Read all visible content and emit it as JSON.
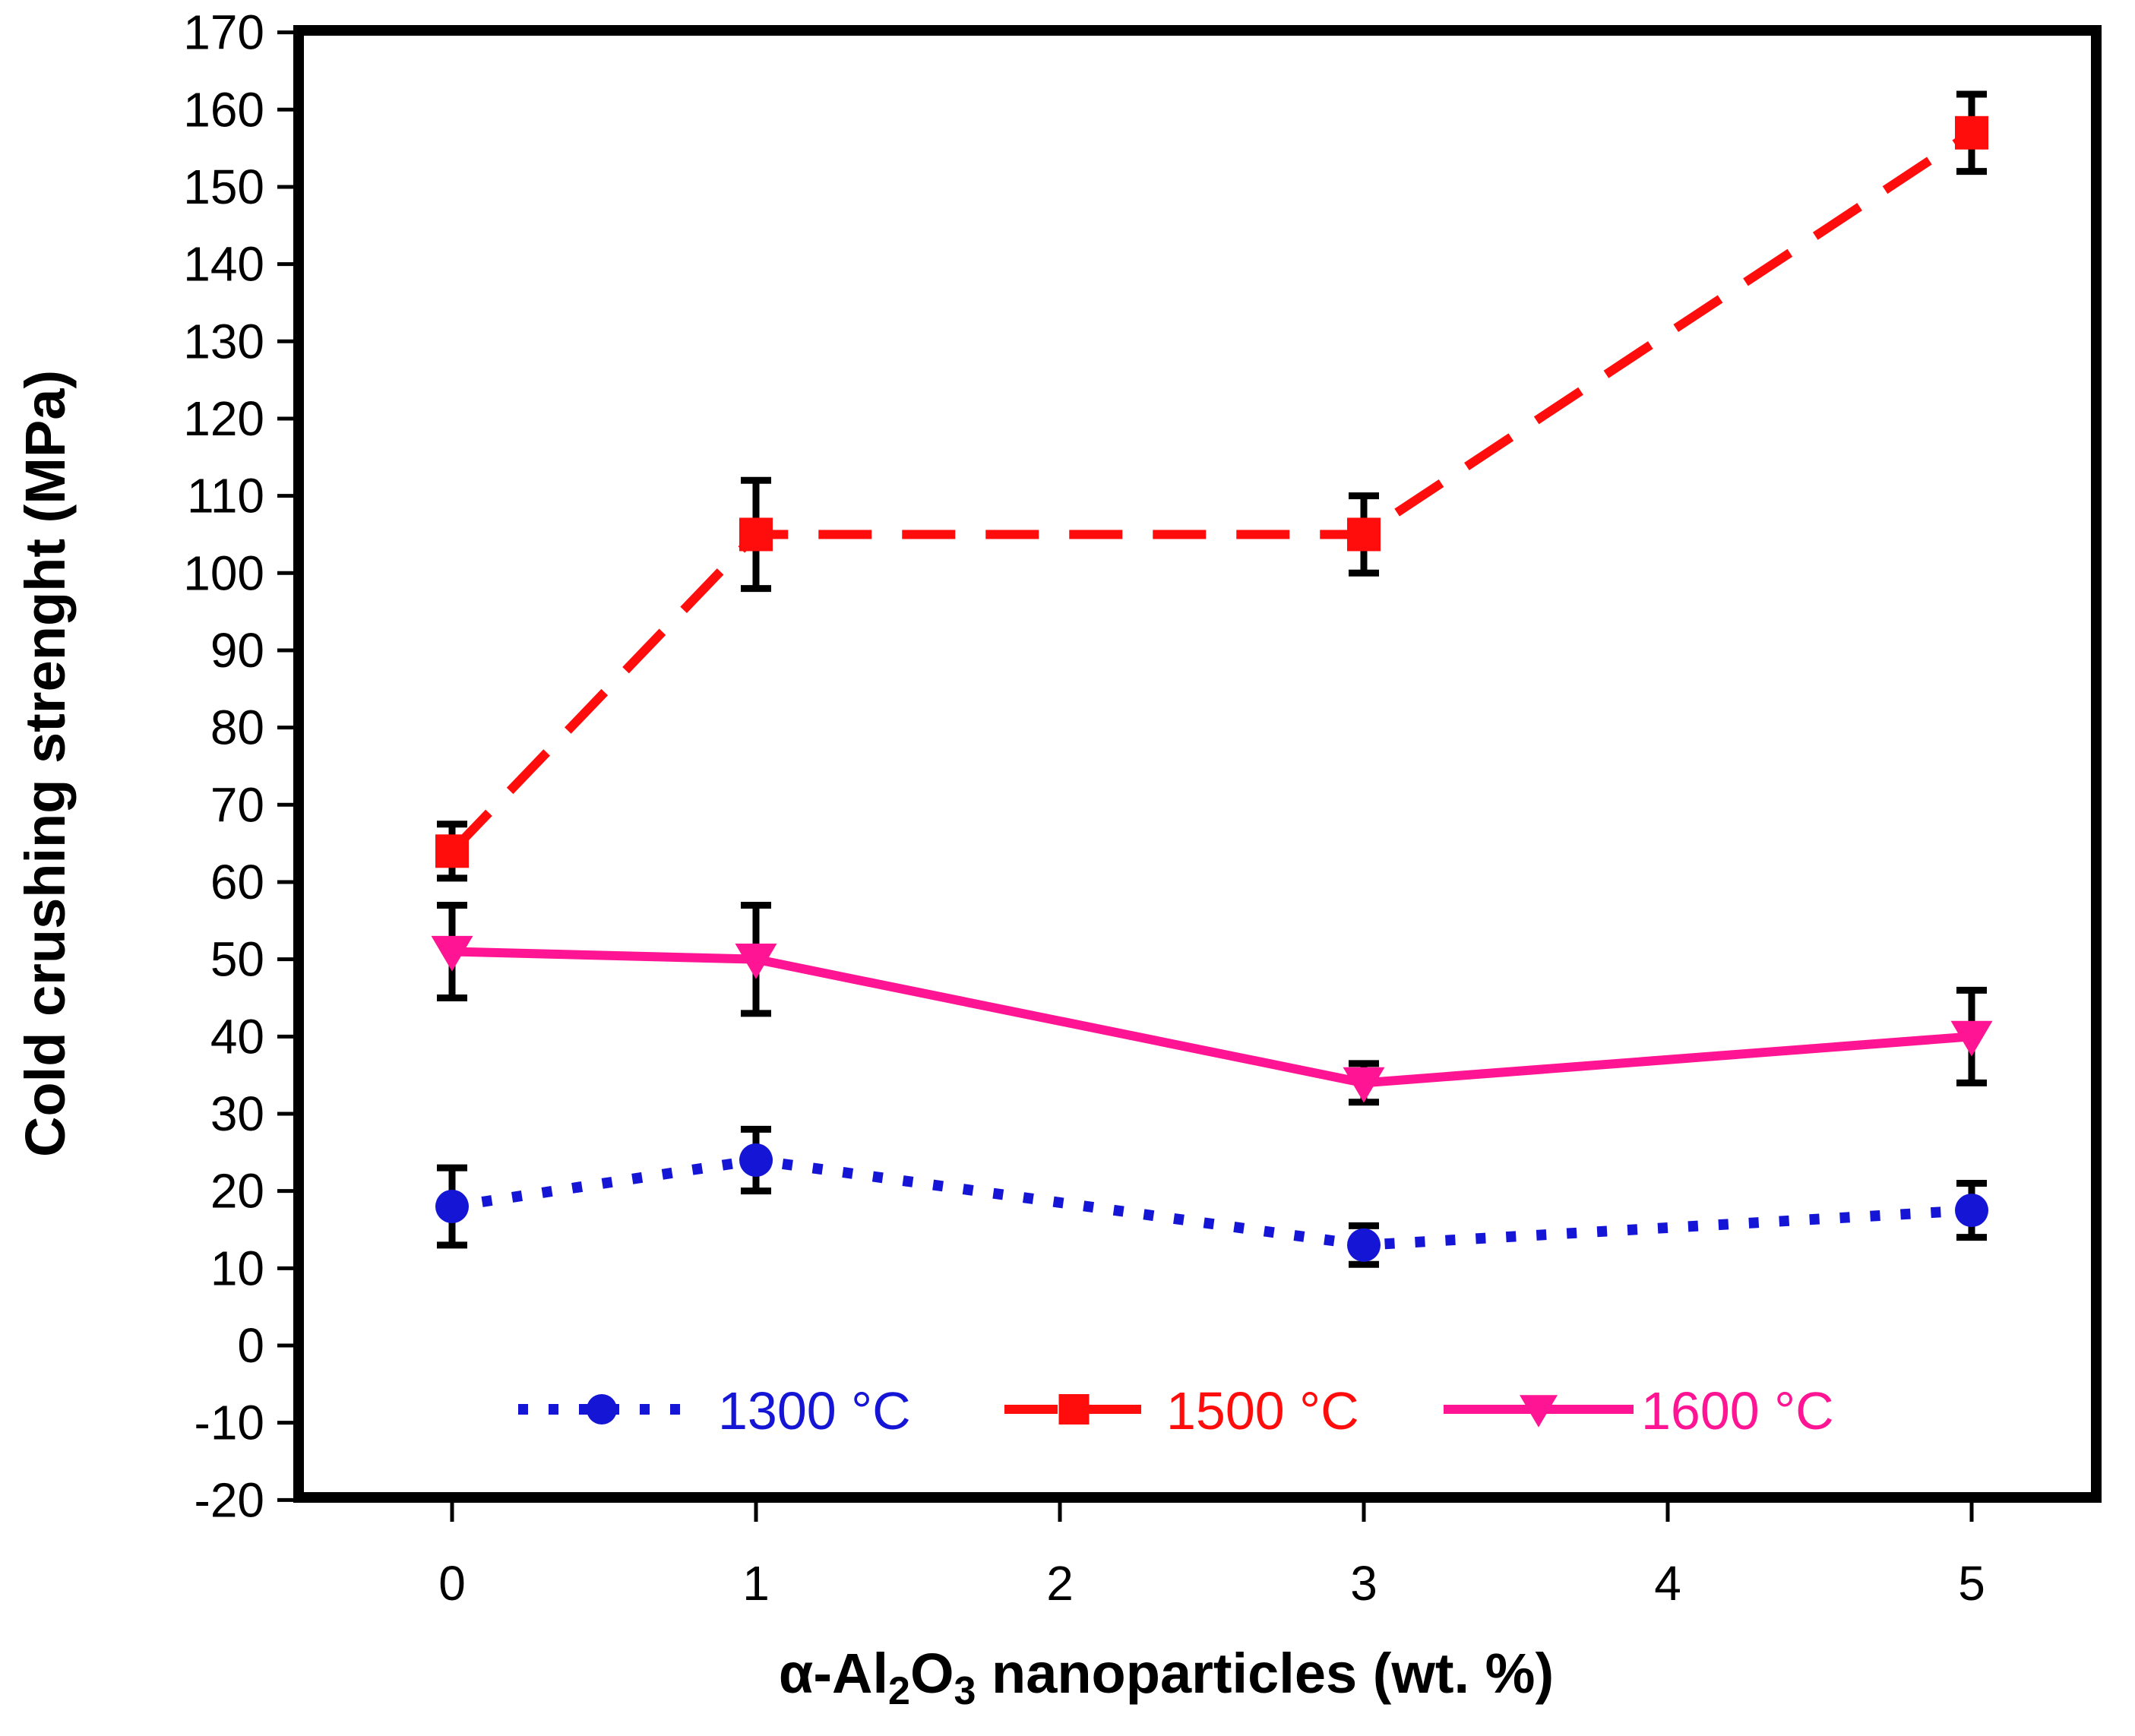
{
  "chart_data": {
    "type": "line",
    "title": "",
    "xlabel_parts": [
      "α-Al",
      "2",
      "O",
      "3",
      " nanoparticles (wt. %)"
    ],
    "ylabel": "Cold crushing strenght  (MPa)",
    "xlim": [
      -0.5,
      5.4
    ],
    "ylim": [
      -20,
      170
    ],
    "x_ticks": [
      0,
      1,
      2,
      3,
      4,
      5
    ],
    "y_ticks": [
      -20,
      -10,
      0,
      10,
      20,
      30,
      40,
      50,
      60,
      70,
      80,
      90,
      100,
      110,
      120,
      130,
      140,
      150,
      160,
      170
    ],
    "legend_position": "bottom-center",
    "series": [
      {
        "name": "1300  °C",
        "color": "#1515d6",
        "style": "dotted",
        "marker": "circle",
        "x": [
          0,
          1,
          3,
          5
        ],
        "y": [
          18,
          24,
          13,
          17.5
        ],
        "err": [
          5,
          4,
          2.5,
          3.5
        ]
      },
      {
        "name": "1500  °C",
        "color": "#ff0d0d",
        "style": "dashed",
        "marker": "square",
        "x": [
          0,
          1,
          3,
          5
        ],
        "y": [
          64,
          105,
          105,
          157
        ],
        "err": [
          3.5,
          7,
          5,
          5
        ]
      },
      {
        "name": "1600  °C",
        "color": "#ff1493",
        "style": "solid",
        "marker": "triangle-down",
        "x": [
          0,
          1,
          3,
          5
        ],
        "y": [
          51,
          50,
          34,
          40
        ],
        "err": [
          6,
          7,
          2.5,
          6
        ]
      }
    ]
  }
}
